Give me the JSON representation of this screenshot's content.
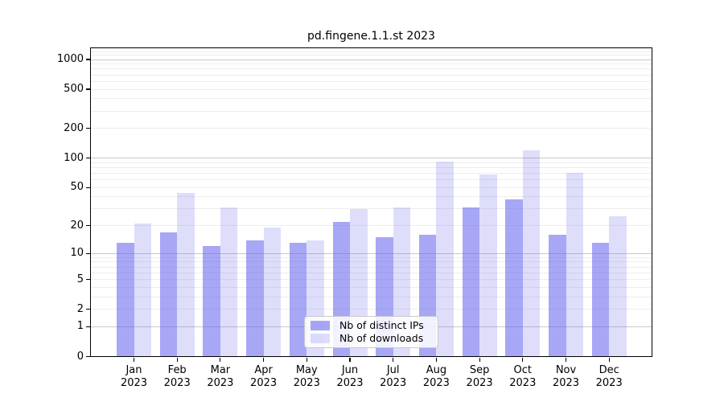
{
  "chart_data": {
    "type": "bar",
    "title": "pd.fingene.1.1.st 2023",
    "year_label": "2023",
    "categories": [
      "Jan",
      "Feb",
      "Mar",
      "Apr",
      "May",
      "Jun",
      "Jul",
      "Aug",
      "Sep",
      "Oct",
      "Nov",
      "Dec"
    ],
    "series": [
      {
        "name": "Nb of distinct IPs",
        "color": "rgba(104,104,238,0.58)",
        "values": [
          13,
          17,
          12,
          14,
          13,
          22,
          15,
          16,
          31,
          38,
          16,
          13
        ]
      },
      {
        "name": "Nb of downloads",
        "color": "rgba(104,104,238,0.22)",
        "values": [
          21,
          44,
          31,
          19,
          14,
          30,
          31,
          93,
          68,
          120,
          71,
          25
        ]
      }
    ],
    "xlabel": "",
    "ylabel": "",
    "yscale": "log1p",
    "yticks": [
      0,
      1,
      2,
      5,
      10,
      20,
      50,
      100,
      200,
      500,
      1000
    ],
    "major_grid_values": [
      1,
      10,
      100,
      1000
    ],
    "minor_grid_values": [
      2,
      3,
      4,
      5,
      6,
      7,
      8,
      9,
      20,
      30,
      40,
      50,
      60,
      70,
      80,
      90,
      200,
      300,
      400,
      500,
      600,
      700,
      800,
      900,
      1100,
      1200
    ],
    "ylim": [
      0,
      1300
    ],
    "grid": true,
    "legend_position": "lower center"
  },
  "colors": {
    "axis": "#000000",
    "major_grid": "#c8c8c8",
    "minor_grid": "#ededed",
    "background": "#ffffff"
  }
}
